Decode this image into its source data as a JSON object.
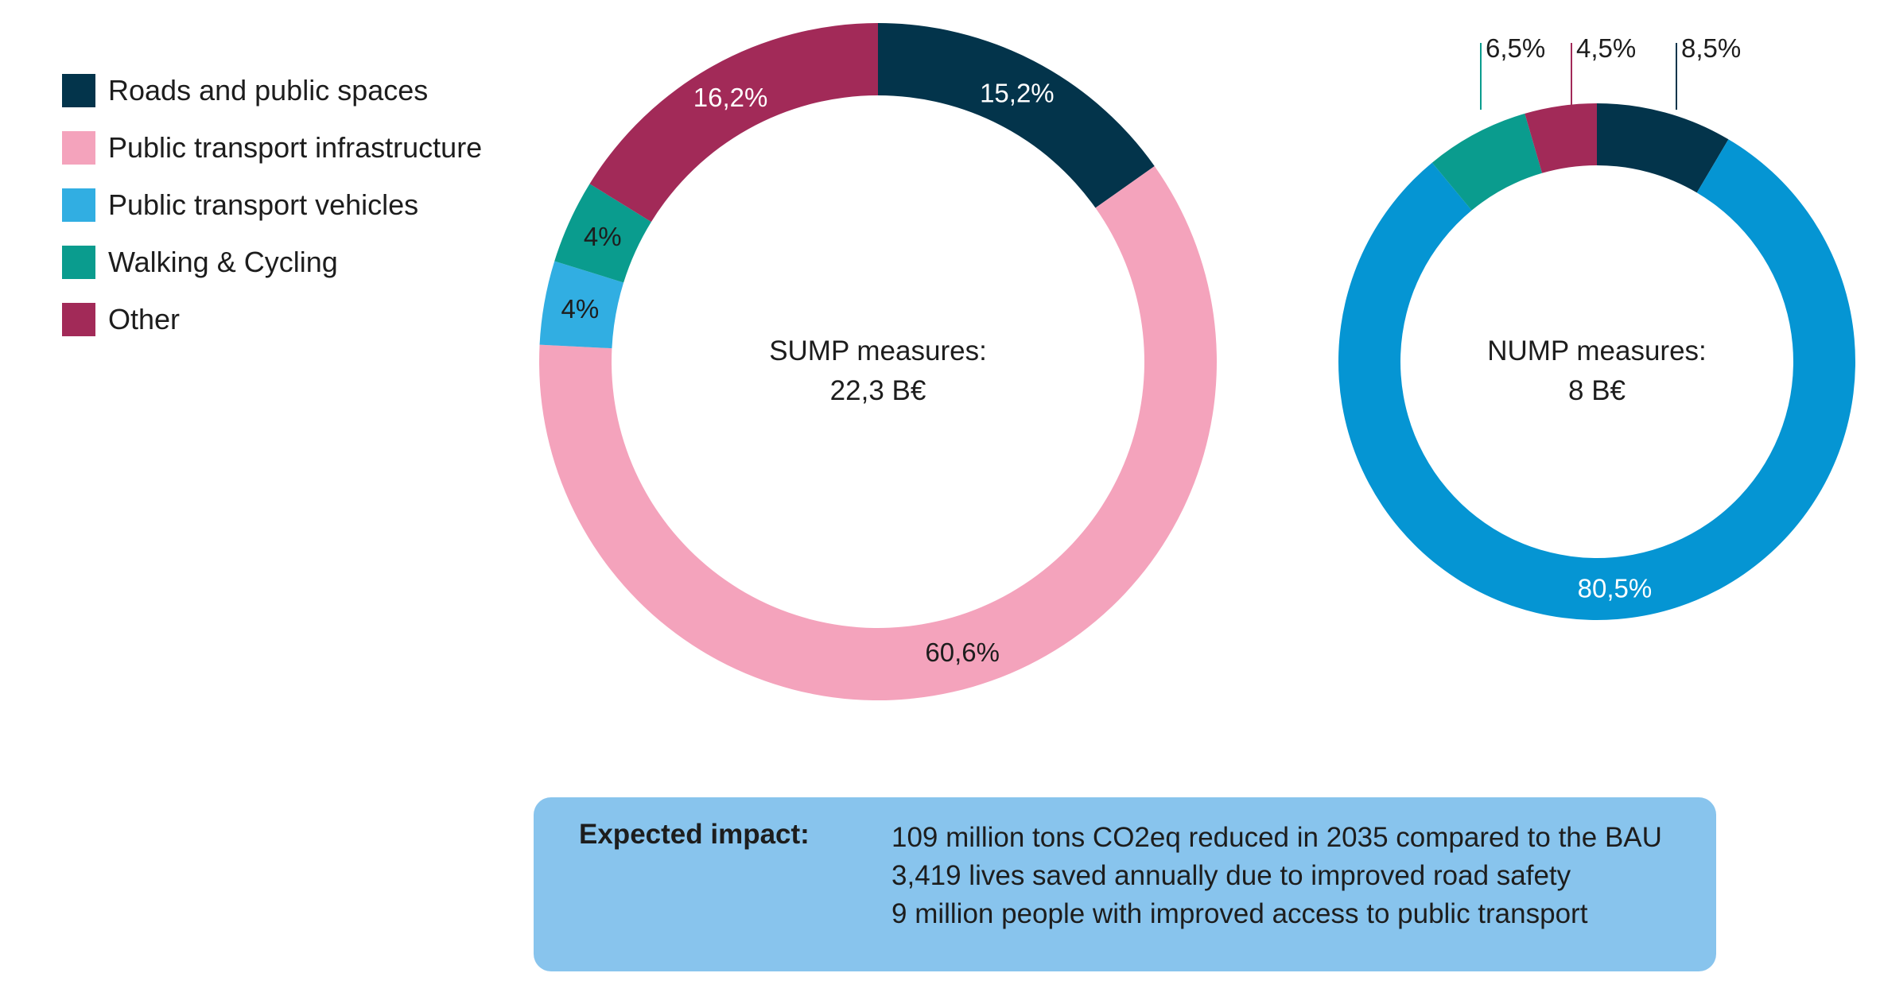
{
  "legend": [
    {
      "label": "Roads and public spaces",
      "color": "#03344b"
    },
    {
      "label": "Public transport infrastructure",
      "color": "#f4a3bc"
    },
    {
      "label": "Public transport vehicles",
      "color": "#31aee2"
    },
    {
      "label": "Walking & Cycling",
      "color": "#0a9c8e"
    },
    {
      "label": "Other",
      "color": "#a22a58"
    }
  ],
  "chart_data": [
    {
      "type": "pie",
      "center_label": [
        "SUMP measures:",
        "22,3 B€"
      ],
      "slices": [
        {
          "label": "Roads and public spaces",
          "value": 15.2,
          "display": "15,2%",
          "color": "#03344b",
          "text_color": "#ffffff"
        },
        {
          "label": "Public transport infrastructure",
          "value": 60.6,
          "display": "60,6%",
          "color": "#f4a3bc",
          "text_color": "#1d1d1d"
        },
        {
          "label": "Public transport vehicles",
          "value": 4,
          "display": "4%",
          "color": "#31aee2",
          "text_color": "#1d1d1d"
        },
        {
          "label": "Walking & Cycling",
          "value": 4,
          "display": "4%",
          "color": "#0a9c8e",
          "text_color": "#1d1d1d"
        },
        {
          "label": "Other",
          "value": 16.2,
          "display": "16,2%",
          "color": "#a22a58",
          "text_color": "#ffffff"
        }
      ]
    },
    {
      "type": "pie",
      "center_label": [
        "NUMP measures:",
        "8 B€"
      ],
      "slices": [
        {
          "label": "Roads and public spaces",
          "value": 8.5,
          "display": "8,5%",
          "color": "#03344b",
          "text_color": "#1d1d1d"
        },
        {
          "label": "Public transport vehicles",
          "value": 80.5,
          "display": "80,5%",
          "color": "#0595d3",
          "text_color": "#ffffff"
        },
        {
          "label": "Walking & Cycling",
          "value": 6.5,
          "display": "6,5%",
          "color": "#0a9c8e",
          "text_color": "#1d1d1d"
        },
        {
          "label": "Other",
          "value": 4.5,
          "display": "4,5%",
          "color": "#a22a58",
          "text_color": "#1d1d1d"
        }
      ]
    }
  ],
  "impact": {
    "title": "Expected impact:",
    "lines": [
      "109 million tons CO2eq reduced in 2035 compared to the BAU",
      "3,419 lives saved annually due to improved road safety",
      "9 million people with improved access to public transport"
    ]
  }
}
